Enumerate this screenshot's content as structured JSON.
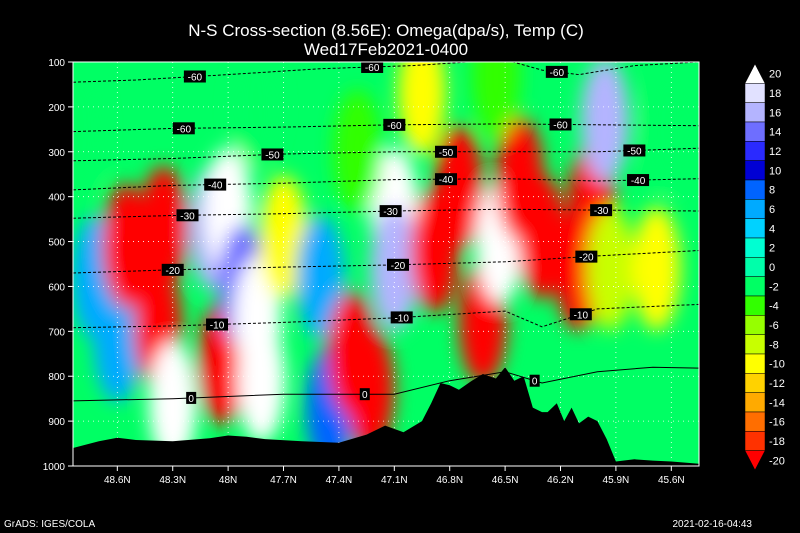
{
  "chart_data": {
    "type": "heatmap",
    "title": "N-S Cross-section (8.56E): Omega(dpa/s), Temp (C)",
    "subtitle": "Wed17Feb2021-0400",
    "x_tick_labels": [
      "48.6N",
      "48.3N",
      "48N",
      "47.7N",
      "47.4N",
      "47.1N",
      "46.8N",
      "46.5N",
      "46.2N",
      "45.9N",
      "45.6N"
    ],
    "x_tick_values": [
      48.6,
      48.3,
      48.0,
      47.7,
      47.4,
      47.1,
      46.8,
      46.5,
      46.2,
      45.9,
      45.6
    ],
    "xlim": [
      48.84,
      45.45
    ],
    "y_tick_labels": [
      "100",
      "200",
      "300",
      "400",
      "500",
      "600",
      "700",
      "800",
      "900",
      "1000"
    ],
    "y_tick_values": [
      100,
      200,
      300,
      400,
      500,
      600,
      700,
      800,
      900,
      1000
    ],
    "ylim": [
      100,
      1000
    ],
    "y_inverted": true,
    "grid": "dotted",
    "colorbar": {
      "placement": "right",
      "labels": [
        "20",
        "18",
        "16",
        "14",
        "12",
        "10",
        "8",
        "6",
        "4",
        "2",
        "0",
        "-2",
        "-4",
        "-6",
        "-8",
        "-10",
        "-12",
        "-14",
        "-16",
        "-18",
        "-20"
      ],
      "colors": [
        "#ffffff",
        "#e1e1ff",
        "#b4b4ff",
        "#6e6eff",
        "#2a2aff",
        "#0000d4",
        "#0064ff",
        "#00aaff",
        "#00d2ff",
        "#00ffd2",
        "#00ffaa",
        "#00ff64",
        "#32ff00",
        "#96ff00",
        "#c8ff00",
        "#ffff00",
        "#ffd200",
        "#ffaa00",
        "#ff6e00",
        "#ff3200",
        "#ff0000"
      ]
    },
    "omega_cells": [
      {
        "x": 48.72,
        "p": 580,
        "v": 6
      },
      {
        "x": 48.6,
        "p": 720,
        "v": 6
      },
      {
        "x": 48.55,
        "p": 510,
        "v": -20
      },
      {
        "x": 48.35,
        "p": 470,
        "v": -20
      },
      {
        "x": 48.38,
        "p": 690,
        "v": -20
      },
      {
        "x": 48.3,
        "p": 860,
        "v": 20
      },
      {
        "x": 48.08,
        "p": 470,
        "v": 16
      },
      {
        "x": 48.0,
        "p": 430,
        "v": 20
      },
      {
        "x": 48.03,
        "p": 770,
        "v": -20
      },
      {
        "x": 47.92,
        "p": 600,
        "v": 14
      },
      {
        "x": 47.84,
        "p": 670,
        "v": 20
      },
      {
        "x": 47.82,
        "p": 810,
        "v": 20
      },
      {
        "x": 47.7,
        "p": 490,
        "v": -10
      },
      {
        "x": 47.5,
        "p": 580,
        "v": 6
      },
      {
        "x": 47.45,
        "p": 870,
        "v": 8
      },
      {
        "x": 47.33,
        "p": 750,
        "v": -20
      },
      {
        "x": 47.23,
        "p": 830,
        "v": -20
      },
      {
        "x": 47.1,
        "p": 430,
        "v": 20
      },
      {
        "x": 47.1,
        "p": 560,
        "v": 16
      },
      {
        "x": 46.88,
        "p": 520,
        "v": -20
      },
      {
        "x": 46.75,
        "p": 380,
        "v": -20
      },
      {
        "x": 46.62,
        "p": 680,
        "v": -20
      },
      {
        "x": 46.53,
        "p": 500,
        "v": 20
      },
      {
        "x": 46.42,
        "p": 360,
        "v": -20
      },
      {
        "x": 46.3,
        "p": 490,
        "v": -20
      },
      {
        "x": 46.1,
        "p": 560,
        "v": -20
      },
      {
        "x": 46.03,
        "p": 420,
        "v": -20
      },
      {
        "x": 45.96,
        "p": 230,
        "v": 16
      },
      {
        "x": 45.93,
        "p": 560,
        "v": -8
      },
      {
        "x": 45.68,
        "p": 560,
        "v": -10
      },
      {
        "x": 47.85,
        "p": 200,
        "v": -2
      },
      {
        "x": 46.95,
        "p": 170,
        "v": -10
      },
      {
        "x": 46.55,
        "p": 130,
        "v": -4
      },
      {
        "x": 48.8,
        "p": 250,
        "v": -2
      },
      {
        "x": 45.62,
        "p": 250,
        "v": -2
      },
      {
        "x": 47.3,
        "p": 300,
        "v": -4
      }
    ],
    "temperature_contours": [
      {
        "value": -60,
        "x": [
          48.84,
          48.5,
          48.0,
          47.5,
          47.0,
          46.7,
          46.5,
          46.3,
          46.1,
          45.8,
          45.45
        ],
        "p": [
          145,
          140,
          128,
          115,
          108,
          100,
          95,
          118,
          128,
          108,
          100
        ],
        "labels": [
          {
            "text": "-60",
            "x": 48.18
          },
          {
            "text": "-60",
            "x": 47.22
          },
          {
            "text": "-60",
            "x": 46.22
          }
        ]
      },
      {
        "value": -60,
        "x": [
          48.84,
          48.3,
          47.7,
          47.1,
          46.5,
          46.0,
          45.45
        ],
        "p": [
          255,
          248,
          245,
          240,
          238,
          240,
          242
        ],
        "labels": [
          {
            "text": "-60",
            "x": 48.24
          },
          {
            "text": "-60",
            "x": 47.1
          },
          {
            "text": "-60",
            "x": 46.2
          }
        ]
      },
      {
        "value": -50,
        "x": [
          48.84,
          48.3,
          47.7,
          47.1,
          46.5,
          46.0,
          45.45
        ],
        "p": [
          320,
          315,
          305,
          300,
          300,
          300,
          292
        ],
        "labels": [
          {
            "text": "-50",
            "x": 47.76
          },
          {
            "text": "-50",
            "x": 46.82
          },
          {
            "text": "-50",
            "x": 45.8
          }
        ]
      },
      {
        "value": -40,
        "x": [
          48.84,
          48.3,
          47.7,
          47.1,
          46.5,
          46.0,
          45.45
        ],
        "p": [
          385,
          375,
          370,
          362,
          360,
          365,
          360
        ],
        "labels": [
          {
            "text": "-40",
            "x": 48.07
          },
          {
            "text": "-40",
            "x": 46.82
          },
          {
            "text": "-40",
            "x": 45.78
          }
        ]
      },
      {
        "value": -30,
        "x": [
          48.84,
          48.3,
          47.7,
          47.1,
          46.5,
          46.0,
          45.45
        ],
        "p": [
          448,
          442,
          438,
          432,
          428,
          430,
          432
        ],
        "labels": [
          {
            "text": "-30",
            "x": 48.22
          },
          {
            "text": "-30",
            "x": 47.12
          },
          {
            "text": "-30",
            "x": 45.98
          }
        ]
      },
      {
        "value": -20,
        "x": [
          48.84,
          48.3,
          47.7,
          47.1,
          46.5,
          46.0,
          45.45
        ],
        "p": [
          570,
          563,
          557,
          552,
          545,
          532,
          520
        ],
        "labels": [
          {
            "text": "-20",
            "x": 48.3
          },
          {
            "text": "-20",
            "x": 47.08
          },
          {
            "text": "-20",
            "x": 46.06
          }
        ]
      },
      {
        "value": -10,
        "x": [
          48.84,
          48.3,
          47.7,
          47.1,
          46.5,
          46.3,
          46.0,
          45.45
        ],
        "p": [
          692,
          688,
          680,
          670,
          655,
          690,
          650,
          640
        ],
        "labels": [
          {
            "text": "-10",
            "x": 48.06
          },
          {
            "text": "-10",
            "x": 47.06
          },
          {
            "text": "-10",
            "x": 46.09
          }
        ]
      },
      {
        "value": 0,
        "x": [
          48.84,
          48.3,
          47.7,
          47.1,
          46.8,
          46.5,
          46.3,
          46.0,
          45.7,
          45.45
        ],
        "p": [
          855,
          850,
          840,
          840,
          810,
          790,
          815,
          790,
          780,
          782
        ],
        "labels": [
          {
            "text": "0",
            "x": 48.2
          },
          {
            "text": "0",
            "x": 47.26
          },
          {
            "text": "0",
            "x": 46.34
          }
        ]
      }
    ],
    "terrain_surface_p": {
      "x": [
        48.84,
        48.7,
        48.6,
        48.5,
        48.3,
        48.1,
        48.0,
        47.9,
        47.8,
        47.6,
        47.4,
        47.25,
        47.15,
        47.05,
        46.95,
        46.9,
        46.85,
        46.8,
        46.75,
        46.68,
        46.62,
        46.55,
        46.5,
        46.45,
        46.4,
        46.35,
        46.3,
        46.27,
        46.22,
        46.18,
        46.14,
        46.1,
        46.05,
        46.0,
        45.95,
        45.9,
        45.8,
        45.7,
        45.6,
        45.45
      ],
      "p": [
        960,
        945,
        937,
        942,
        945,
        938,
        932,
        935,
        940,
        945,
        948,
        930,
        910,
        925,
        900,
        860,
        815,
        820,
        830,
        810,
        795,
        805,
        780,
        810,
        800,
        870,
        880,
        880,
        860,
        900,
        870,
        905,
        890,
        900,
        940,
        990,
        985,
        988,
        990,
        995
      ]
    }
  },
  "footer": {
    "left": "GrADS: IGES/COLA",
    "right": "2021-02-16-04:43"
  }
}
